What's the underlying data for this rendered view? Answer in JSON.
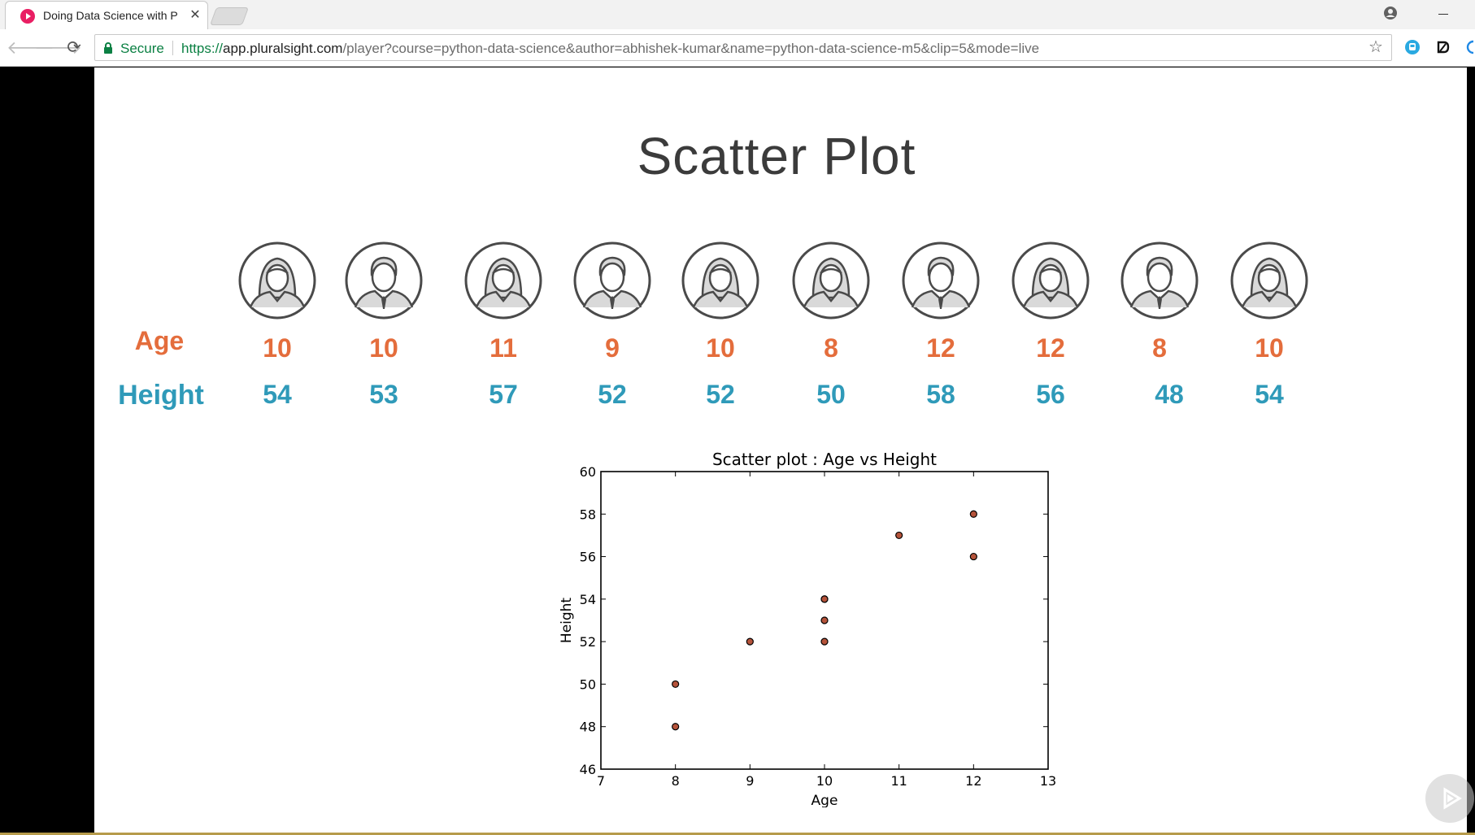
{
  "browser": {
    "tab": {
      "title": "Doing Data Science with P",
      "close": "✕"
    },
    "secure_label": "Secure",
    "url": {
      "scheme": "https://",
      "host": "app.pluralsight.com",
      "path": "/player?course=python-data-science&author=abhishek-kumar&name=python-data-science-m5&clip=5&mode=live"
    },
    "icons": {
      "favicon": "pluralsight-play-icon",
      "profile": "account-circle-icon",
      "back": "arrow-left-icon",
      "forward": "arrow-right-icon",
      "reload": "reload-icon",
      "lock": "lock-icon",
      "star": "star-outline-icon",
      "extensions": [
        "extension-blue-icon",
        "extension-dashlane-icon",
        "extension-partial-icon"
      ]
    },
    "colors": {
      "secure": "#0b8043",
      "favicon": "#e91e63"
    }
  },
  "slide": {
    "title": "Scatter Plot",
    "row_labels": {
      "age": "Age",
      "height": "Height"
    },
    "people": [
      {
        "gender": "female",
        "age": "10",
        "height": "54"
      },
      {
        "gender": "male",
        "age": "10",
        "height": "53"
      },
      {
        "gender": "female",
        "age": "11",
        "height": "57"
      },
      {
        "gender": "male",
        "age": "9",
        "height": "52"
      },
      {
        "gender": "female",
        "age": "10",
        "height": "52"
      },
      {
        "gender": "female",
        "age": "8",
        "height": "50"
      },
      {
        "gender": "male",
        "age": "12",
        "height": "58"
      },
      {
        "gender": "female",
        "age": "12",
        "height": "56"
      },
      {
        "gender": "male",
        "age": "8",
        "height": "48"
      },
      {
        "gender": "female",
        "age": "10",
        "height": "54"
      }
    ],
    "colors": {
      "age": "#e46d3c",
      "height": "#2f9ab9"
    }
  },
  "chart_data": {
    "type": "scatter",
    "title": "Scatter plot : Age vs Height",
    "xlabel": "Age",
    "ylabel": "Height",
    "xlim": [
      7,
      13
    ],
    "ylim": [
      46,
      60
    ],
    "xticks": [
      7,
      8,
      9,
      10,
      11,
      12,
      13
    ],
    "yticks": [
      46,
      48,
      50,
      52,
      54,
      56,
      58,
      60
    ],
    "grid": false,
    "points": [
      {
        "x": 10,
        "y": 54
      },
      {
        "x": 10,
        "y": 53
      },
      {
        "x": 11,
        "y": 57
      },
      {
        "x": 9,
        "y": 52
      },
      {
        "x": 10,
        "y": 52
      },
      {
        "x": 8,
        "y": 50
      },
      {
        "x": 12,
        "y": 58
      },
      {
        "x": 12,
        "y": 56
      },
      {
        "x": 8,
        "y": 48
      },
      {
        "x": 10,
        "y": 54
      }
    ],
    "marker_color": "#b5533a"
  },
  "player": {
    "overlay_icon": "pluralsight-play-icon"
  }
}
